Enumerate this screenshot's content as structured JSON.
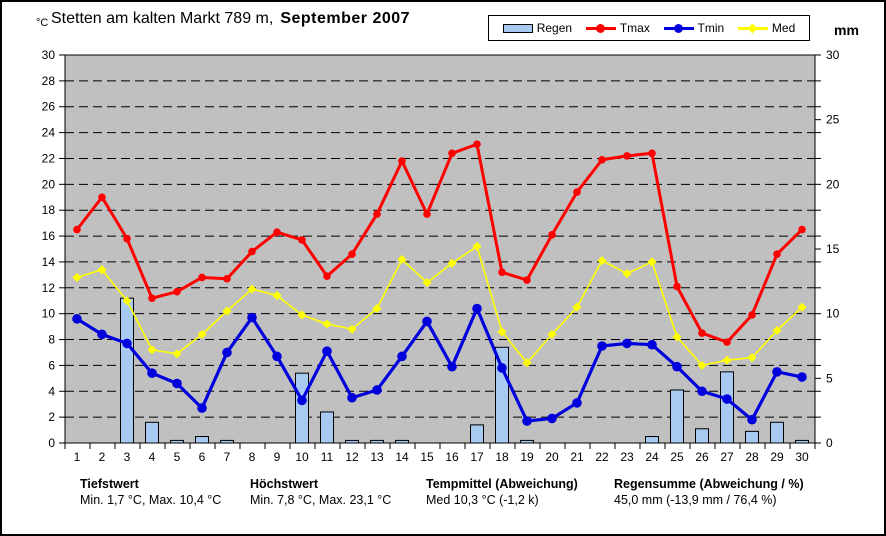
{
  "header": {
    "unit_left": "°C",
    "unit_right": "mm",
    "title_regular": "Stetten am kalten Markt 789 m,",
    "title_bold": "September 2007"
  },
  "legend": {
    "items": [
      {
        "label": "Regen",
        "type": "bar",
        "color": "#A6CAF0"
      },
      {
        "label": "Tmax",
        "type": "line-circle",
        "color": "#FF0000"
      },
      {
        "label": "Tmin",
        "type": "line-circle",
        "color": "#0000DC"
      },
      {
        "label": "Med",
        "type": "line-diamond",
        "color": "#FFFF00"
      }
    ]
  },
  "chart_data": {
    "type": "combo-bar-line",
    "title": "Stetten am kalten Markt 789 m, September 2007",
    "plot_bg": "#C0C0C0",
    "grid": "dashed-horizontal-every-2",
    "legend_position": "top",
    "categories": [
      1,
      2,
      3,
      4,
      5,
      6,
      7,
      8,
      9,
      10,
      11,
      12,
      13,
      14,
      15,
      16,
      17,
      18,
      19,
      20,
      21,
      22,
      23,
      24,
      25,
      26,
      27,
      28,
      29,
      30
    ],
    "left_axis": {
      "label": "°C",
      "min": 0,
      "max": 30,
      "ticks": [
        0,
        2,
        4,
        6,
        8,
        10,
        12,
        14,
        16,
        18,
        20,
        22,
        24,
        26,
        28,
        30
      ]
    },
    "right_axis": {
      "label": "mm",
      "min": 0,
      "max": 30,
      "ticks": [
        0,
        5,
        10,
        15,
        20,
        25,
        30
      ]
    },
    "series": [
      {
        "name": "Regen",
        "type": "bar",
        "axis": "right",
        "unit": "mm",
        "color": "#A6CAF0",
        "values": [
          0,
          0,
          11.2,
          1.6,
          0.2,
          0.5,
          0.2,
          0,
          0,
          5.4,
          2.4,
          0.2,
          0.2,
          0.2,
          0,
          0,
          1.4,
          7.4,
          0.2,
          0,
          0,
          0,
          0,
          0.5,
          4.1,
          1.1,
          5.5,
          0.9,
          1.6,
          0.2
        ]
      },
      {
        "name": "Tmax",
        "type": "line",
        "axis": "left",
        "unit": "°C",
        "marker": "circle",
        "color": "#FF0000",
        "values": [
          16.5,
          19.0,
          15.8,
          11.2,
          11.7,
          12.8,
          12.7,
          14.8,
          16.3,
          15.7,
          12.9,
          14.6,
          17.7,
          21.8,
          17.7,
          22.4,
          23.1,
          13.2,
          12.6,
          16.1,
          19.4,
          21.9,
          22.2,
          22.4,
          12.1,
          8.5,
          7.8,
          9.9,
          14.6,
          16.5
        ]
      },
      {
        "name": "Tmin",
        "type": "line",
        "axis": "left",
        "unit": "°C",
        "marker": "circle",
        "color": "#0000DC",
        "values": [
          9.6,
          8.4,
          7.7,
          5.4,
          4.6,
          2.7,
          7.0,
          9.7,
          6.7,
          3.3,
          7.1,
          3.5,
          4.1,
          6.7,
          9.4,
          5.9,
          10.4,
          5.8,
          1.7,
          1.9,
          3.1,
          7.5,
          7.7,
          7.6,
          5.9,
          4.0,
          3.4,
          1.8,
          5.5,
          5.1
        ]
      },
      {
        "name": "Med",
        "type": "line",
        "axis": "left",
        "unit": "°C",
        "marker": "diamond",
        "color": "#FFFF00",
        "values": [
          12.8,
          13.4,
          11.0,
          7.2,
          6.9,
          8.4,
          10.2,
          11.9,
          11.4,
          9.9,
          9.2,
          8.8,
          10.4,
          14.2,
          12.4,
          13.9,
          15.2,
          8.6,
          6.2,
          8.4,
          10.5,
          14.1,
          13.1,
          14.0,
          8.2,
          6.0,
          6.4,
          6.6,
          8.7,
          10.5
        ]
      }
    ]
  },
  "footer": {
    "stats": [
      {
        "title": "Tiefstwert",
        "value": "Min. 1,7 °C, Max. 10,4 °C"
      },
      {
        "title": "Höchstwert",
        "value": "Min. 7,8 °C, Max. 23,1 °C"
      },
      {
        "title": "Tempmittel (Abweichung)",
        "value": "Med 10,3 °C (-1,2 k)"
      },
      {
        "title": "Regensumme (Abweichung / %)",
        "value": "45,0 mm (-13,9 mm / 76,4 %)"
      }
    ]
  }
}
